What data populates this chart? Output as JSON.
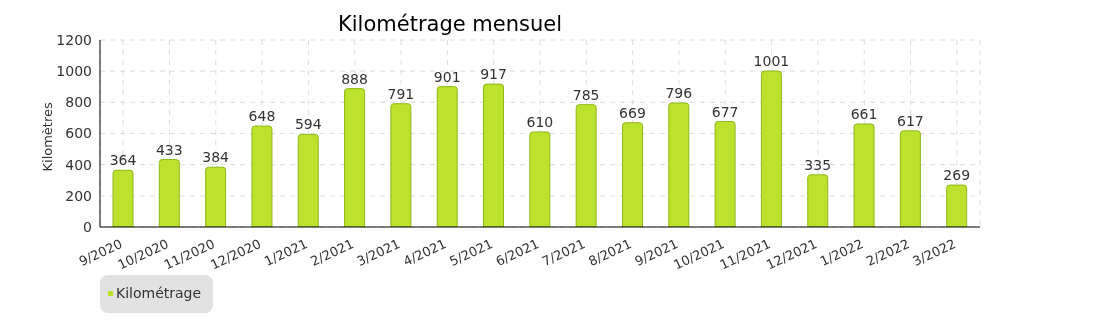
{
  "chart_data": {
    "type": "bar",
    "title": "Kilométrage mensuel",
    "ylabel": "Kilomètres",
    "categories": [
      "9/2020",
      "10/2020",
      "11/2020",
      "12/2020",
      "1/2021",
      "2/2021",
      "3/2021",
      "4/2021",
      "5/2021",
      "6/2021",
      "7/2021",
      "8/2021",
      "9/2021",
      "10/2021",
      "11/2021",
      "12/2021",
      "1/2022",
      "2/2022",
      "3/2022"
    ],
    "series": [
      {
        "name": "Kilométrage",
        "color": "#bce22e",
        "values": [
          364,
          433,
          384,
          648,
          594,
          888,
          791,
          901,
          917,
          610,
          785,
          669,
          796,
          677,
          1001,
          335,
          661,
          617,
          269
        ]
      }
    ],
    "ylim": [
      0,
      1200
    ],
    "yticks": [
      0,
      200,
      400,
      600,
      800,
      1000,
      1200
    ],
    "grid": true,
    "legend": "bottom left",
    "data_labels": true
  }
}
